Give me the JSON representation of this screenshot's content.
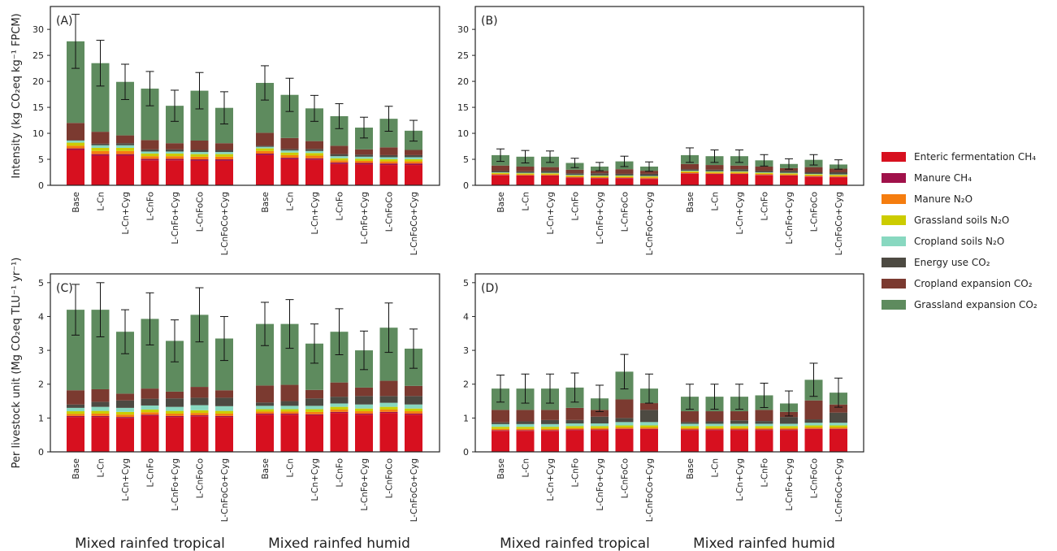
{
  "chart_data": [
    {
      "type": "bar",
      "stacked": true,
      "title": "(A)",
      "ylabel": "Intensity (kg CO₂eq kg⁻¹ FPCM)",
      "categories": [
        "Base",
        "L-Cn",
        "L-Cn+Cyg",
        "L-CnFo",
        "L-CnFo+Cyg",
        "L-CnFoCo",
        "L-CnFoCo+Cyg",
        "Base",
        "L-Cn",
        "L-Cn+Cyg",
        "L-CnFo",
        "L-CnFo+Cyg",
        "L-CnFoCo",
        "L-CnFoCo+Cyg"
      ],
      "ylim": [
        0,
        34.4
      ],
      "yticks": [
        0,
        5,
        10,
        15,
        20,
        25,
        30
      ],
      "series": [
        {
          "name": "Enteric fermentation CH₄",
          "color": "#d7101f",
          "values": [
            6.8,
            5.7,
            5.7,
            4.8,
            4.8,
            4.7,
            4.7,
            5.8,
            5.0,
            4.9,
            4.1,
            4.0,
            3.9,
            3.9
          ]
        },
        {
          "name": "Manure CH₄",
          "color": "#a0114a",
          "values": [
            0.3,
            0.3,
            0.3,
            0.3,
            0.3,
            0.3,
            0.3,
            0.3,
            0.3,
            0.3,
            0.3,
            0.3,
            0.3,
            0.3
          ]
        },
        {
          "name": "Manure N₂O",
          "color": "#f57d0f",
          "values": [
            0.5,
            0.6,
            0.6,
            0.5,
            0.5,
            0.5,
            0.5,
            0.5,
            0.5,
            0.5,
            0.4,
            0.4,
            0.4,
            0.4
          ]
        },
        {
          "name": "Grassland soils N₂O",
          "color": "#cccc00",
          "values": [
            0.6,
            0.6,
            0.6,
            0.5,
            0.5,
            0.5,
            0.5,
            0.5,
            0.5,
            0.5,
            0.4,
            0.4,
            0.4,
            0.4
          ]
        },
        {
          "name": "Cropland soils N₂O",
          "color": "#88d8c0",
          "values": [
            0.4,
            0.5,
            0.5,
            0.4,
            0.4,
            0.4,
            0.4,
            0.3,
            0.4,
            0.4,
            0.4,
            0.4,
            0.4,
            0.4
          ]
        },
        {
          "name": "Energy use CO₂",
          "color": "#4d4a42",
          "values": [
            0.1,
            0.3,
            0.4,
            0.4,
            0.4,
            0.4,
            0.4,
            0.2,
            0.3,
            0.4,
            0.4,
            0.4,
            0.4,
            0.4
          ]
        },
        {
          "name": "Cropland expansion CO₂",
          "color": "#7b3a30",
          "values": [
            3.3,
            2.3,
            1.5,
            1.8,
            1.2,
            1.8,
            1.3,
            2.5,
            2.1,
            1.5,
            1.6,
            1.0,
            1.5,
            1.0
          ]
        },
        {
          "name": "Grassland expansion CO₂",
          "color": "#5e8b5e",
          "values": [
            15.7,
            13.2,
            10.3,
            9.9,
            7.2,
            9.6,
            6.8,
            9.6,
            8.3,
            6.3,
            5.7,
            4.2,
            5.5,
            3.7
          ]
        }
      ],
      "errors": [
        5.2,
        4.4,
        3.4,
        3.3,
        3.0,
        3.5,
        3.1,
        3.3,
        3.2,
        2.5,
        2.4,
        2.0,
        2.4,
        2.0
      ]
    },
    {
      "type": "bar",
      "stacked": true,
      "title": "(B)",
      "categories": [
        "Base",
        "L-Cn",
        "L-Cn+Cyg",
        "L-CnFo",
        "L-CnFo+Cyg",
        "L-CnFoCo",
        "L-CnFoCo+Cyg",
        "Base",
        "L-Cn",
        "L-Cn+Cyg",
        "L-CnFo",
        "L-CnFo+Cyg",
        "L-CnFoCo",
        "L-CnFoCo+Cyg"
      ],
      "ylim": [
        0,
        34.4
      ],
      "yticks": [
        0,
        5,
        10,
        15,
        20,
        25,
        30
      ],
      "series": [
        {
          "color": "#d7101f",
          "values": [
            1.9,
            1.8,
            1.8,
            1.4,
            1.3,
            1.3,
            1.2,
            2.2,
            2.1,
            2.1,
            1.9,
            1.8,
            1.6,
            1.5
          ]
        },
        {
          "color": "#a0114a",
          "values": [
            0.1,
            0.1,
            0.1,
            0.1,
            0.1,
            0.1,
            0.1,
            0.1,
            0.1,
            0.1,
            0.1,
            0.1,
            0.1,
            0.1
          ]
        },
        {
          "color": "#f57d0f",
          "values": [
            0.2,
            0.2,
            0.2,
            0.2,
            0.2,
            0.2,
            0.2,
            0.2,
            0.2,
            0.2,
            0.2,
            0.2,
            0.2,
            0.2
          ]
        },
        {
          "color": "#cccc00",
          "values": [
            0.2,
            0.2,
            0.2,
            0.2,
            0.2,
            0.2,
            0.2,
            0.2,
            0.2,
            0.2,
            0.2,
            0.2,
            0.2,
            0.2
          ]
        },
        {
          "color": "#88d8c0",
          "values": [
            0.1,
            0.1,
            0.1,
            0.1,
            0.1,
            0.1,
            0.1,
            0.1,
            0.1,
            0.1,
            0.1,
            0.1,
            0.1,
            0.1
          ]
        },
        {
          "color": "#4d4a42",
          "values": [
            0.3,
            0.3,
            0.4,
            0.3,
            0.4,
            0.3,
            0.4,
            0.3,
            0.3,
            0.4,
            0.3,
            0.4,
            0.3,
            0.4
          ]
        },
        {
          "color": "#7b3a30",
          "values": [
            1.0,
            0.9,
            0.7,
            0.7,
            0.5,
            0.9,
            0.6,
            1.0,
            0.9,
            0.7,
            0.8,
            0.5,
            1.0,
            0.7
          ]
        },
        {
          "color": "#5e8b5e",
          "values": [
            2.0,
            1.9,
            2.0,
            1.3,
            0.8,
            1.5,
            0.8,
            1.7,
            1.7,
            1.8,
            1.2,
            0.8,
            1.4,
            0.8
          ]
        }
      ],
      "errors": [
        1.2,
        1.2,
        1.1,
        0.9,
        0.8,
        1.0,
        0.9,
        1.4,
        1.2,
        1.2,
        1.1,
        1.0,
        1.0,
        0.9
      ]
    },
    {
      "type": "bar",
      "stacked": true,
      "title": "(C)",
      "ylabel": "Per livestock unit (Mg CO₂eq TLU⁻¹ yr⁻¹)",
      "categories": [
        "Base",
        "L-Cn",
        "L-Cn+Cyg",
        "L-CnFo",
        "L-CnFo+Cyg",
        "L-CnFoCo",
        "L-CnFoCo+Cyg",
        "Base",
        "L-Cn",
        "L-Cn+Cyg",
        "L-CnFo",
        "L-CnFo+Cyg",
        "L-CnFoCo",
        "L-CnFoCo+Cyg"
      ],
      "groups": [
        "Mixed rainfed tropical",
        "Mixed rainfed humid"
      ],
      "ylim": [
        0,
        5.26
      ],
      "yticks": [
        0,
        1,
        2,
        3,
        4,
        5
      ],
      "series": [
        {
          "color": "#d7101f",
          "values": [
            1.03,
            1.03,
            1.0,
            1.07,
            1.03,
            1.05,
            1.03,
            1.1,
            1.1,
            1.08,
            1.15,
            1.1,
            1.15,
            1.1
          ]
        },
        {
          "color": "#a0114a",
          "values": [
            0.03,
            0.03,
            0.03,
            0.03,
            0.03,
            0.03,
            0.03,
            0.03,
            0.03,
            0.03,
            0.03,
            0.03,
            0.03,
            0.03
          ]
        },
        {
          "color": "#f57d0f",
          "values": [
            0.06,
            0.07,
            0.07,
            0.07,
            0.07,
            0.07,
            0.07,
            0.06,
            0.06,
            0.07,
            0.07,
            0.07,
            0.07,
            0.07
          ]
        },
        {
          "color": "#cccc00",
          "values": [
            0.08,
            0.08,
            0.08,
            0.08,
            0.08,
            0.08,
            0.08,
            0.07,
            0.07,
            0.08,
            0.08,
            0.08,
            0.08,
            0.08
          ]
        },
        {
          "color": "#88d8c0",
          "values": [
            0.1,
            0.12,
            0.12,
            0.12,
            0.12,
            0.15,
            0.14,
            0.1,
            0.1,
            0.1,
            0.1,
            0.12,
            0.12,
            0.12
          ]
        },
        {
          "color": "#4d4a42",
          "values": [
            0.1,
            0.15,
            0.22,
            0.2,
            0.25,
            0.22,
            0.25,
            0.1,
            0.14,
            0.22,
            0.2,
            0.25,
            0.2,
            0.25
          ]
        },
        {
          "color": "#7b3a30",
          "values": [
            0.42,
            0.37,
            0.2,
            0.3,
            0.2,
            0.32,
            0.22,
            0.5,
            0.48,
            0.25,
            0.42,
            0.25,
            0.45,
            0.3
          ]
        },
        {
          "color": "#5e8b5e",
          "values": [
            2.38,
            2.35,
            1.83,
            2.06,
            1.5,
            2.13,
            1.53,
            1.82,
            1.8,
            1.37,
            1.5,
            1.1,
            1.57,
            1.1
          ]
        }
      ],
      "errors": [
        0.75,
        0.8,
        0.65,
        0.77,
        0.62,
        0.8,
        0.65,
        0.64,
        0.72,
        0.58,
        0.68,
        0.57,
        0.73,
        0.58
      ]
    },
    {
      "type": "bar",
      "stacked": true,
      "title": "(D)",
      "categories": [
        "Base",
        "L-Cn",
        "L-Cn+Cyg",
        "L-CnFo",
        "L-CnFo+Cyg",
        "L-CnFoCo",
        "L-CnFoCo+Cyg",
        "Base",
        "L-Cn",
        "L-Cn+Cyg",
        "L-CnFo",
        "L-CnFo+Cyg",
        "L-CnFoCo",
        "L-CnFoCo+Cyg"
      ],
      "groups": [
        "Mixed rainfed tropical",
        "Mixed rainfed humid"
      ],
      "ylim": [
        0,
        5.26
      ],
      "yticks": [
        0,
        1,
        2,
        3,
        4,
        5
      ],
      "series": [
        {
          "color": "#d7101f",
          "values": [
            0.62,
            0.62,
            0.62,
            0.64,
            0.64,
            0.66,
            0.66,
            0.64,
            0.64,
            0.64,
            0.64,
            0.64,
            0.66,
            0.66
          ]
        },
        {
          "color": "#a0114a",
          "values": [
            0.02,
            0.02,
            0.02,
            0.02,
            0.02,
            0.02,
            0.02,
            0.02,
            0.02,
            0.02,
            0.02,
            0.02,
            0.02,
            0.02
          ]
        },
        {
          "color": "#f57d0f",
          "values": [
            0.04,
            0.04,
            0.04,
            0.04,
            0.04,
            0.04,
            0.04,
            0.04,
            0.04,
            0.04,
            0.04,
            0.04,
            0.04,
            0.04
          ]
        },
        {
          "color": "#cccc00",
          "values": [
            0.06,
            0.06,
            0.06,
            0.06,
            0.06,
            0.06,
            0.06,
            0.06,
            0.06,
            0.06,
            0.06,
            0.06,
            0.06,
            0.06
          ]
        },
        {
          "color": "#88d8c0",
          "values": [
            0.08,
            0.08,
            0.08,
            0.08,
            0.08,
            0.1,
            0.1,
            0.07,
            0.07,
            0.07,
            0.07,
            0.07,
            0.08,
            0.08
          ]
        },
        {
          "color": "#4d4a42",
          "values": [
            0.05,
            0.08,
            0.12,
            0.1,
            0.2,
            0.12,
            0.36,
            0.05,
            0.07,
            0.1,
            0.08,
            0.2,
            0.1,
            0.3
          ]
        },
        {
          "color": "#7b3a30",
          "values": [
            0.37,
            0.34,
            0.3,
            0.36,
            0.2,
            0.55,
            0.2,
            0.32,
            0.3,
            0.27,
            0.33,
            0.15,
            0.56,
            0.24
          ]
        },
        {
          "color": "#5e8b5e",
          "values": [
            0.63,
            0.63,
            0.63,
            0.6,
            0.34,
            0.82,
            0.43,
            0.43,
            0.43,
            0.43,
            0.43,
            0.25,
            0.61,
            0.35
          ]
        }
      ],
      "errors": [
        0.4,
        0.43,
        0.43,
        0.43,
        0.39,
        0.51,
        0.43,
        0.37,
        0.37,
        0.37,
        0.36,
        0.37,
        0.49,
        0.43
      ]
    }
  ]
}
